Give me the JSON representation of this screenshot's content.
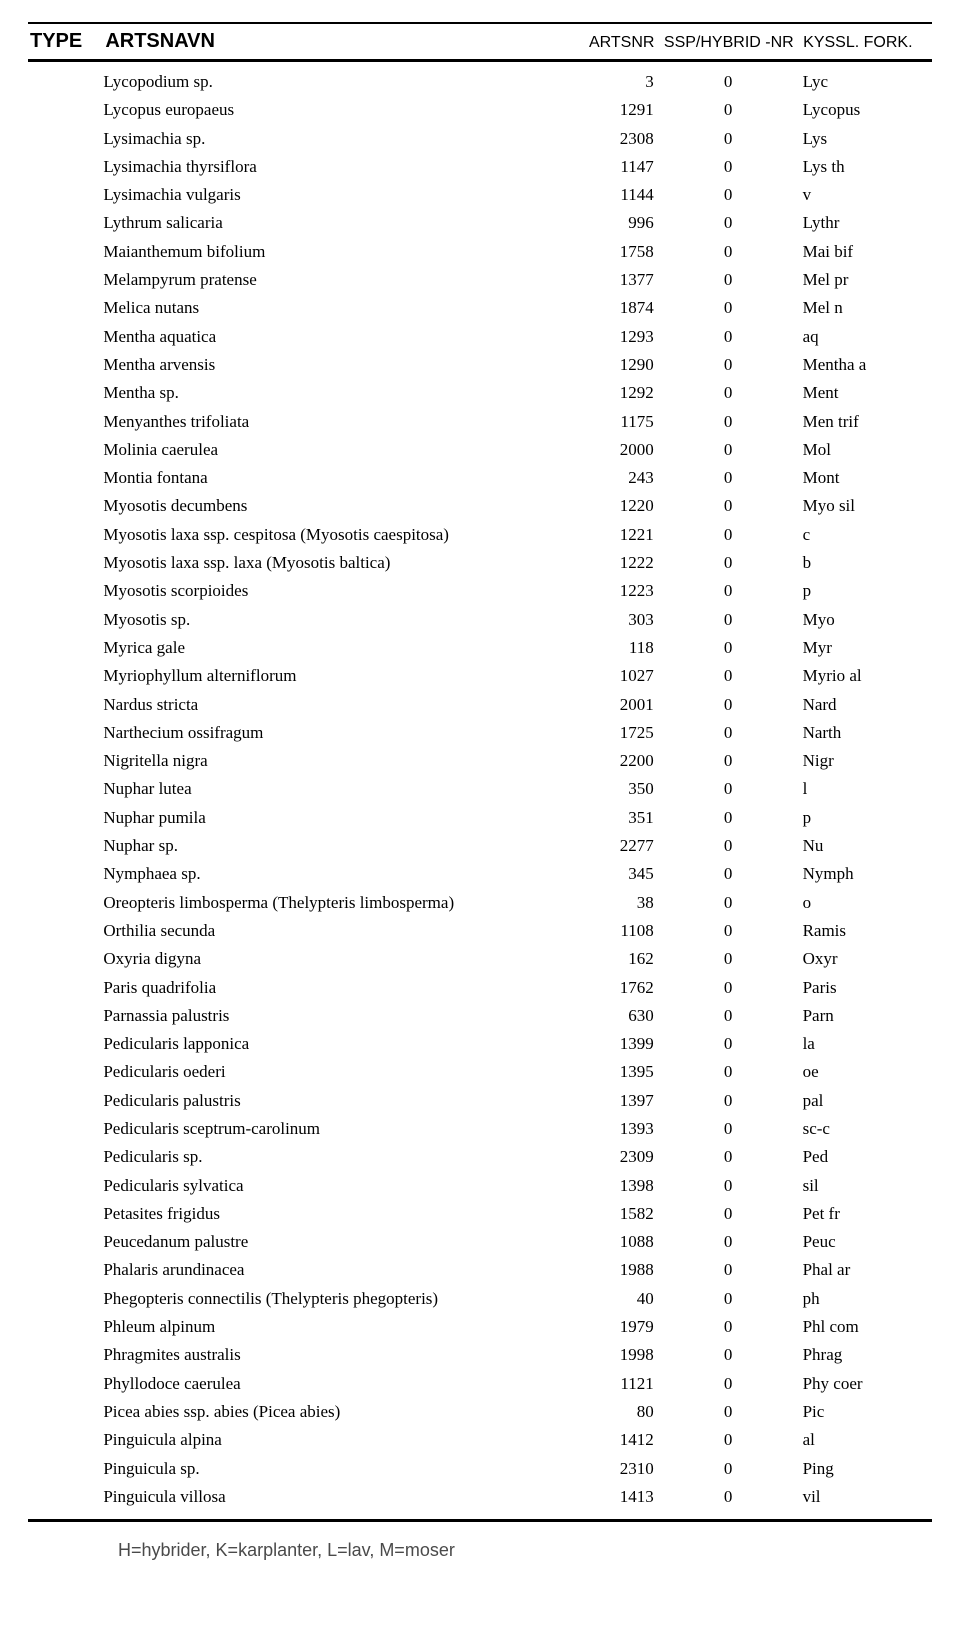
{
  "header": {
    "type": "TYPE",
    "artsnavn": "ARTSNAVN",
    "artsnr": "ARTSNR",
    "ssp": "SSP/HYBRID -NR",
    "kyssl": "KYSSL. FORK."
  },
  "rows": [
    {
      "name": "Lycopodium sp.",
      "artsnr": "3",
      "ssp": "0",
      "kyssl": "Lyc"
    },
    {
      "name": "Lycopus europaeus",
      "artsnr": "1291",
      "ssp": "0",
      "kyssl": "Lycopus"
    },
    {
      "name": "Lysimachia sp.",
      "artsnr": "2308",
      "ssp": "0",
      "kyssl": "Lys"
    },
    {
      "name": "Lysimachia thyrsiflora",
      "artsnr": "1147",
      "ssp": "0",
      "kyssl": "Lys th"
    },
    {
      "name": "Lysimachia vulgaris",
      "artsnr": "1144",
      "ssp": "0",
      "kyssl": "v"
    },
    {
      "name": "Lythrum salicaria",
      "artsnr": "996",
      "ssp": "0",
      "kyssl": "Lythr"
    },
    {
      "name": "Maianthemum bifolium",
      "artsnr": "1758",
      "ssp": "0",
      "kyssl": "Mai bif"
    },
    {
      "name": "Melampyrum pratense",
      "artsnr": "1377",
      "ssp": "0",
      "kyssl": "Mel pr"
    },
    {
      "name": "Melica nutans",
      "artsnr": "1874",
      "ssp": "0",
      "kyssl": "Mel n"
    },
    {
      "name": "Mentha aquatica",
      "artsnr": "1293",
      "ssp": "0",
      "kyssl": "aq"
    },
    {
      "name": "Mentha arvensis",
      "artsnr": "1290",
      "ssp": "0",
      "kyssl": "Mentha a"
    },
    {
      "name": "Mentha sp.",
      "artsnr": "1292",
      "ssp": "0",
      "kyssl": "Ment"
    },
    {
      "name": "Menyanthes trifoliata",
      "artsnr": "1175",
      "ssp": "0",
      "kyssl": "Men trif"
    },
    {
      "name": "Molinia caerulea",
      "artsnr": "2000",
      "ssp": "0",
      "kyssl": "Mol"
    },
    {
      "name": "Montia fontana",
      "artsnr": "243",
      "ssp": "0",
      "kyssl": "Mont"
    },
    {
      "name": "Myosotis decumbens",
      "artsnr": "1220",
      "ssp": "0",
      "kyssl": "Myo sil"
    },
    {
      "name": "Myosotis laxa ssp. cespitosa (Myosotis caespitosa)",
      "artsnr": "1221",
      "ssp": "0",
      "kyssl": "c"
    },
    {
      "name": "Myosotis laxa ssp. laxa (Myosotis baltica)",
      "artsnr": "1222",
      "ssp": "0",
      "kyssl": "b"
    },
    {
      "name": "Myosotis scorpioides",
      "artsnr": "1223",
      "ssp": "0",
      "kyssl": "p"
    },
    {
      "name": "Myosotis sp.",
      "artsnr": "303",
      "ssp": "0",
      "kyssl": "Myo"
    },
    {
      "name": "Myrica gale",
      "artsnr": "118",
      "ssp": "0",
      "kyssl": "Myr"
    },
    {
      "name": "Myriophyllum alterniflorum",
      "artsnr": "1027",
      "ssp": "0",
      "kyssl": "Myrio al"
    },
    {
      "name": "Nardus stricta",
      "artsnr": "2001",
      "ssp": "0",
      "kyssl": "Nard"
    },
    {
      "name": "Narthecium ossifragum",
      "artsnr": "1725",
      "ssp": "0",
      "kyssl": "Narth"
    },
    {
      "name": "Nigritella nigra",
      "artsnr": "2200",
      "ssp": "0",
      "kyssl": "Nigr"
    },
    {
      "name": "Nuphar lutea",
      "artsnr": "350",
      "ssp": "0",
      "kyssl": "l"
    },
    {
      "name": "Nuphar pumila",
      "artsnr": "351",
      "ssp": "0",
      "kyssl": "p"
    },
    {
      "name": "Nuphar sp.",
      "artsnr": "2277",
      "ssp": "0",
      "kyssl": "Nu"
    },
    {
      "name": "Nymphaea sp.",
      "artsnr": "345",
      "ssp": "0",
      "kyssl": "Nymph"
    },
    {
      "name": "Oreopteris limbosperma (Thelypteris limbosperma)",
      "artsnr": "38",
      "ssp": "0",
      "kyssl": "o"
    },
    {
      "name": "Orthilia secunda",
      "artsnr": "1108",
      "ssp": "0",
      "kyssl": "Ramis"
    },
    {
      "name": "Oxyria digyna",
      "artsnr": "162",
      "ssp": "0",
      "kyssl": "Oxyr"
    },
    {
      "name": "Paris quadrifolia",
      "artsnr": "1762",
      "ssp": "0",
      "kyssl": "Paris"
    },
    {
      "name": "Parnassia palustris",
      "artsnr": "630",
      "ssp": "0",
      "kyssl": "Parn"
    },
    {
      "name": "Pedicularis lapponica",
      "artsnr": "1399",
      "ssp": "0",
      "kyssl": "la"
    },
    {
      "name": "Pedicularis oederi",
      "artsnr": "1395",
      "ssp": "0",
      "kyssl": "oe"
    },
    {
      "name": "Pedicularis palustris",
      "artsnr": "1397",
      "ssp": "0",
      "kyssl": "pal"
    },
    {
      "name": "Pedicularis sceptrum-carolinum",
      "artsnr": "1393",
      "ssp": "0",
      "kyssl": "sc-c"
    },
    {
      "name": "Pedicularis sp.",
      "artsnr": "2309",
      "ssp": "0",
      "kyssl": "Ped"
    },
    {
      "name": "Pedicularis sylvatica",
      "artsnr": "1398",
      "ssp": "0",
      "kyssl": "sil"
    },
    {
      "name": "Petasites frigidus",
      "artsnr": "1582",
      "ssp": "0",
      "kyssl": "Pet fr"
    },
    {
      "name": "Peucedanum palustre",
      "artsnr": "1088",
      "ssp": "0",
      "kyssl": "Peuc"
    },
    {
      "name": "Phalaris arundinacea",
      "artsnr": "1988",
      "ssp": "0",
      "kyssl": "Phal ar"
    },
    {
      "name": "Phegopteris connectilis (Thelypteris phegopteris)",
      "artsnr": "40",
      "ssp": "0",
      "kyssl": "ph"
    },
    {
      "name": "Phleum alpinum",
      "artsnr": "1979",
      "ssp": "0",
      "kyssl": "Phl com"
    },
    {
      "name": "Phragmites australis",
      "artsnr": "1998",
      "ssp": "0",
      "kyssl": "Phrag"
    },
    {
      "name": "Phyllodoce caerulea",
      "artsnr": "1121",
      "ssp": "0",
      "kyssl": "Phy coer"
    },
    {
      "name": "Picea abies ssp. abies (Picea abies)",
      "artsnr": "80",
      "ssp": "0",
      "kyssl": "Pic"
    },
    {
      "name": "Pinguicula alpina",
      "artsnr": "1412",
      "ssp": "0",
      "kyssl": "al"
    },
    {
      "name": "Pinguicula sp.",
      "artsnr": "2310",
      "ssp": "0",
      "kyssl": "Ping"
    },
    {
      "name": "Pinguicula villosa",
      "artsnr": "1413",
      "ssp": "0",
      "kyssl": "vil"
    }
  ],
  "footer": "H=hybrider, K=karplanter, L=lav, M=moser"
}
